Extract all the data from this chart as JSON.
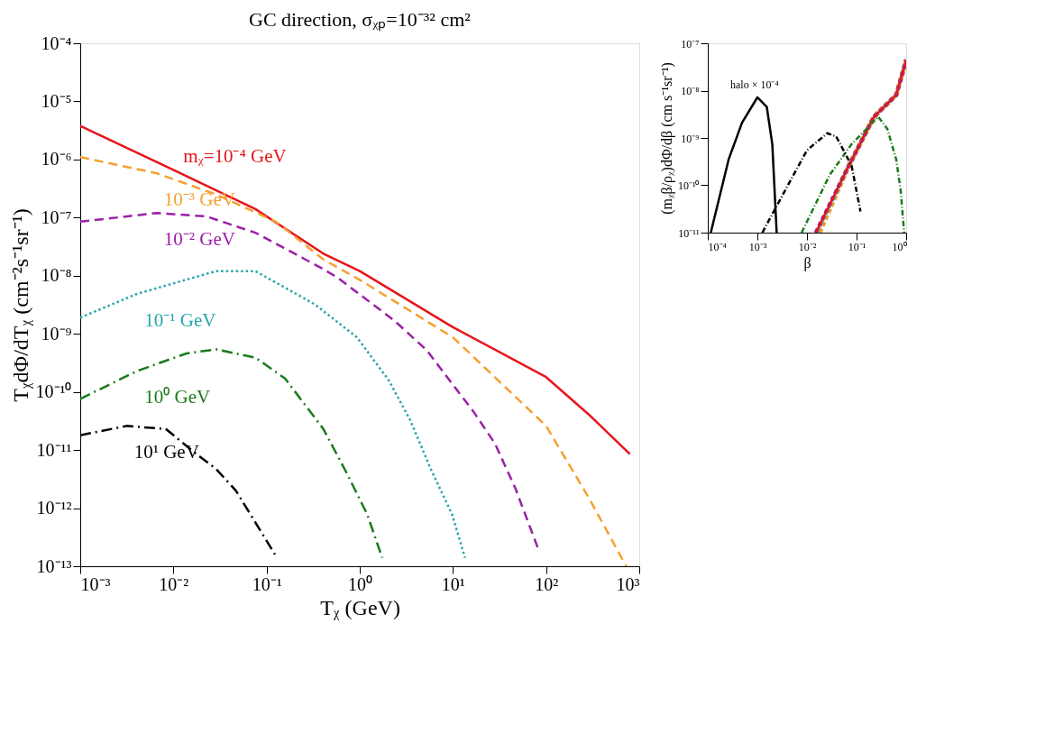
{
  "chart_data": [
    {
      "type": "line",
      "title": "GC direction, σᵪₚ=10⁻³² cm²",
      "xlabel": "Tᵪ (GeV)",
      "ylabel": "TᵪdΦ/dTᵪ (cm⁻²s⁻¹sr⁻¹)",
      "log": "xy",
      "grid": false,
      "legend": false,
      "marker": "none",
      "xlim": [
        0.001,
        1000
      ],
      "ylim": [
        1e-13,
        0.0001
      ],
      "xticks": [
        {
          "value": 0.001,
          "label": "10⁻³"
        },
        {
          "value": 0.01,
          "label": "10⁻²"
        },
        {
          "value": 0.1,
          "label": "10⁻¹"
        },
        {
          "value": 1,
          "label": "10⁰"
        },
        {
          "value": 10,
          "label": "10¹"
        },
        {
          "value": 100,
          "label": "10²"
        },
        {
          "value": 1000,
          "label": "10³"
        }
      ],
      "yticks": [
        {
          "value": 1e-13,
          "label": "10⁻¹³"
        },
        {
          "value": 1e-12,
          "label": "10⁻¹²"
        },
        {
          "value": 1e-11,
          "label": "10⁻¹¹"
        },
        {
          "value": 1e-10,
          "label": "10⁻¹⁰"
        },
        {
          "value": 1e-09,
          "label": "10⁻⁹"
        },
        {
          "value": 1e-08,
          "label": "10⁻⁸"
        },
        {
          "value": 1e-07,
          "label": "10⁻⁷"
        },
        {
          "value": 1e-06,
          "label": "10⁻⁶"
        },
        {
          "value": 1e-05,
          "label": "10⁻⁵"
        },
        {
          "value": 0.0001,
          "label": "10⁻⁴"
        }
      ],
      "series": [
        {
          "name": "mᵪ=10⁻⁴ GeV",
          "color": "#e8141a",
          "line_style": "solid",
          "x": [
            0.001,
            0.0107,
            0.0759,
            0.407,
            1,
            10,
            100,
            282,
            794
          ],
          "values": [
            3.8e-06,
            6.3e-07,
            1.4e-07,
            2.4e-08,
            1.2e-08,
            1.3e-09,
            1.8e-10,
            4.2e-11,
            8.5e-12
          ]
        },
        {
          "name": "10⁻³ GeV",
          "color": "#f5a030",
          "line_style": "dashed",
          "x": [
            0.001,
            0.0066,
            0.0288,
            0.126,
            0.407,
            1,
            10,
            100,
            288,
            724
          ],
          "values": [
            1.1e-06,
            5.8e-07,
            2.5e-07,
            8.5e-08,
            1.9e-08,
            8.5e-09,
            8.7e-10,
            2.6e-11,
            1.5e-12,
            1e-13
          ]
        },
        {
          "name": "10⁻² GeV",
          "color": "#9b1fa8",
          "line_style": "dashed",
          "x": [
            0.001,
            0.0066,
            0.0224,
            0.0759,
            0.407,
            0.575,
            2.34,
            5.25,
            9.77,
            16.6,
            28.2,
            46.8,
            83.2
          ],
          "values": [
            8.5e-08,
            1.2e-07,
            1.05e-07,
            5.5e-08,
            1.3e-08,
            9.3e-09,
            1.7e-09,
            5.2e-10,
            1.4e-10,
            4.6e-11,
            1.3e-11,
            2.2e-12,
            1.9e-13
          ]
        },
        {
          "name": "10⁻¹ GeV",
          "color": "#2aa5ad",
          "line_style": "dotted",
          "x": [
            0.001,
            0.0041,
            0.0288,
            0.0759,
            0.331,
            0.933,
            2.04,
            3.47,
            5.75,
            9.77,
            13.5
          ],
          "values": [
            1.9e-09,
            4.9e-09,
            1.2e-08,
            1.2e-08,
            3.2e-09,
            8.7e-10,
            1.6e-10,
            3.3e-11,
            4.8e-12,
            7.9e-13,
            1.4e-13
          ]
        },
        {
          "name": "10⁰ GeV",
          "color": "#1a7a1a",
          "line_style": "dashdot",
          "x": [
            0.001,
            0.0041,
            0.0138,
            0.0288,
            0.0759,
            0.158,
            0.407,
            0.708,
            1.2,
            1.74
          ],
          "values": [
            7.6e-11,
            2.3e-10,
            4.6e-10,
            5.4e-10,
            3.9e-10,
            1.7e-10,
            2.3e-11,
            4.3e-12,
            7.9e-13,
            1.4e-13
          ]
        },
        {
          "name": "10¹ GeV",
          "color": "#000000",
          "line_style": "dashdot",
          "x": [
            0.001,
            0.00316,
            0.0083,
            0.0174,
            0.0288,
            0.0468,
            0.123
          ],
          "values": [
            1.8e-11,
            2.6e-11,
            2.3e-11,
            8.7e-12,
            4.7e-12,
            2e-12,
            1.6e-13
          ]
        }
      ]
    },
    {
      "type": "line",
      "xlabel": "β",
      "ylabel": "(mᵪβ/ρᵪ)dΦ/dβ (cm s⁻¹sr⁻¹)",
      "log": "xy",
      "grid": false,
      "legend": false,
      "marker": "none",
      "xlim": [
        0.0001,
        1
      ],
      "ylim": [
        1e-11,
        1e-07
      ],
      "xticks": [
        {
          "value": 0.0001,
          "label": "10⁻⁴"
        },
        {
          "value": 0.001,
          "label": "10⁻³"
        },
        {
          "value": 0.01,
          "label": "10⁻²"
        },
        {
          "value": 0.1,
          "label": "10⁻¹"
        },
        {
          "value": 1,
          "label": "10⁰"
        }
      ],
      "yticks": [
        {
          "value": 1e-11,
          "label": "10⁻¹¹"
        },
        {
          "value": 1e-10,
          "label": "10⁻¹⁰"
        },
        {
          "value": 1e-09,
          "label": "10⁻⁹"
        },
        {
          "value": 1e-08,
          "label": "10⁻⁸"
        },
        {
          "value": 1e-07,
          "label": "10⁻⁷"
        }
      ],
      "annotations": [
        {
          "text": "halo × 10⁻⁴",
          "x": 0.001,
          "y": 7.2e-09
        }
      ],
      "series": [
        {
          "color": "#f5a030",
          "line_style": "dashed",
          "x": [
            0.0178,
            0.0646,
            0.224,
            0.631,
            0.912,
            1
          ],
          "values": [
            1e-11,
            2.2e-10,
            2.8e-09,
            8.1e-09,
            3.1e-08,
            4.5e-08
          ]
        },
        {
          "color": "#9b1fa8",
          "line_style": "dashed",
          "x": [
            0.0151,
            0.0646,
            0.224,
            0.631,
            0.912,
            1
          ],
          "values": [
            1e-11,
            2.2e-10,
            2.8e-09,
            8.1e-09,
            3.1e-08,
            4.5e-08
          ]
        },
        {
          "color": "#2aa5ad",
          "line_style": "dotted",
          "x": [
            0.0162,
            0.0646,
            0.224,
            0.631,
            0.912,
            1
          ],
          "values": [
            1e-11,
            2.2e-10,
            2.8e-09,
            8.1e-09,
            3.1e-08,
            4.5e-08
          ]
        },
        {
          "color": "#e8141a",
          "line_style": "solid",
          "x": [
            0.0151,
            0.0646,
            0.224,
            0.631,
            0.912,
            1
          ],
          "values": [
            1e-11,
            2.2e-10,
            2.8e-09,
            8.1e-09,
            3.1e-08,
            4.5e-08
          ]
        },
        {
          "color": "#1a7a1a",
          "line_style": "dashdot",
          "x": [
            0.0078,
            0.0288,
            0.0794,
            0.275,
            0.417,
            0.631,
            0.776,
            0.912
          ],
          "values": [
            1e-11,
            1.66e-10,
            7.4e-10,
            2.8e-09,
            1.55e-09,
            3.5e-10,
            7.8e-11,
            1e-11
          ]
        },
        {
          "color": "#000000",
          "line_style": "dashdot",
          "x": [
            0.00126,
            0.00288,
            0.01,
            0.0257,
            0.0389,
            0.0794,
            0.12
          ],
          "values": [
            1e-11,
            5e-11,
            5.5e-10,
            1.26e-09,
            1.07e-09,
            2.6e-10,
            2.8e-11
          ]
        },
        {
          "color": "#000000",
          "line_style": "solid",
          "x": [
            0.000115,
            0.000263,
            0.00049,
            0.001,
            0.00155,
            0.002,
            0.00245
          ],
          "values": [
            1e-11,
            3.5e-10,
            2.1e-09,
            7.2e-09,
            4.5e-09,
            7.4e-10,
            1e-11
          ]
        }
      ]
    }
  ]
}
